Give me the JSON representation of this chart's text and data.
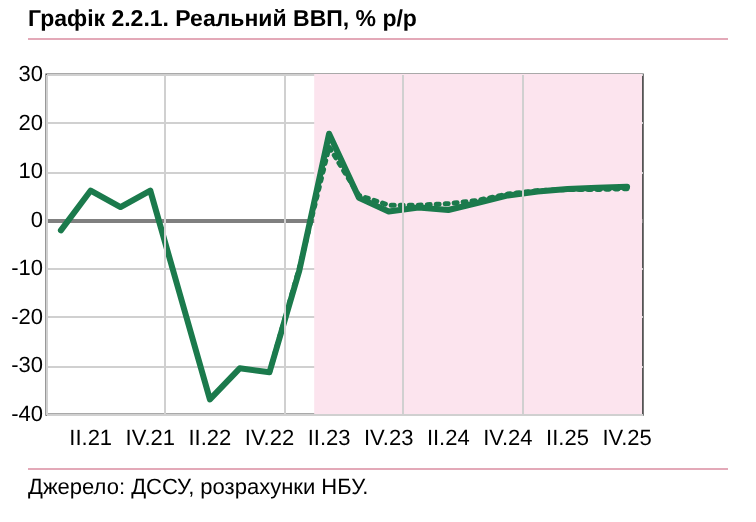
{
  "chart_data": {
    "type": "line",
    "title": "Графік 2.2.1. Реальний ВВП, % р/р",
    "categories": [
      null,
      "II.21",
      null,
      "IV.21",
      null,
      "II.22",
      null,
      "IV.22",
      null,
      "II.23",
      null,
      "IV.23",
      null,
      "II.24",
      null,
      "IV.24",
      null,
      "II.25",
      null,
      "IV.25"
    ],
    "series": [
      {
        "color": "#1b7a4c",
        "line_style": "solid",
        "values": [
          -2.2,
          6,
          2.6,
          6,
          -15.5,
          -37,
          -30.6,
          -31.4,
          -10.5,
          17.7,
          4.5,
          1.7,
          2.5,
          2.0,
          3.5,
          5,
          5.8,
          6.3,
          6.6,
          6.8
        ]
      },
      {
        "color": "#1b7a4c",
        "line_style": "dotted",
        "values": [
          null,
          null,
          null,
          null,
          null,
          null,
          null,
          -31.4,
          -10,
          15,
          5,
          3,
          3,
          3.3,
          4,
          5.3,
          6,
          6.2,
          6.2,
          6.4
        ]
      }
    ],
    "ylim": [
      -40,
      30
    ],
    "yticks": [
      -40,
      -30,
      -20,
      -10,
      0,
      10,
      20,
      30
    ],
    "grid": true,
    "bands": [
      {
        "axis": "x",
        "from": "II.23",
        "to": "IV.25",
        "color": "#fce4ee"
      }
    ],
    "annotations": [
      "Джерело: ДССУ, розрахунки НБУ."
    ]
  }
}
